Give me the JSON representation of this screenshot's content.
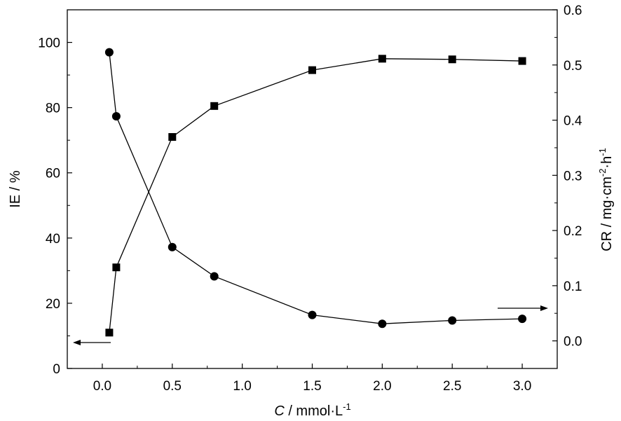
{
  "chart_data": {
    "type": "line",
    "xlabel": {
      "italic": "C",
      "rest": " / mmol·L",
      "sup": "-1"
    },
    "ylabel_left": "IE / %",
    "ylabel_right": {
      "a": "CR / mg·cm",
      "sup1": "-2",
      "b": "·h",
      "sup2": "-1"
    },
    "x_ticks": [
      "0.0",
      "0.5",
      "1.0",
      "1.5",
      "2.0",
      "2.5",
      "3.0"
    ],
    "y_left_ticks": [
      "0",
      "20",
      "40",
      "60",
      "80",
      "100"
    ],
    "y_right_ticks": [
      "0.0",
      "0.1",
      "0.2",
      "0.3",
      "0.4",
      "0.5",
      "0.6"
    ],
    "xlim": [
      -0.25,
      3.25
    ],
    "ylim_left": [
      0,
      110
    ],
    "ylim_right": [
      -0.05,
      0.6
    ],
    "series": [
      {
        "axis": "left",
        "marker": "square",
        "x": [
          0.05,
          0.1,
          0.5,
          0.8,
          1.5,
          2.0,
          2.5,
          3.0
        ],
        "y": [
          11.0,
          31.0,
          71.0,
          80.5,
          91.5,
          95.0,
          94.8,
          94.3
        ]
      },
      {
        "axis": "right",
        "marker": "circle",
        "x": [
          0.05,
          0.1,
          0.5,
          0.8,
          1.5,
          2.0,
          2.5,
          3.0
        ],
        "y": [
          0.523,
          0.407,
          0.17,
          0.117,
          0.047,
          0.031,
          0.037,
          0.04
        ]
      }
    ],
    "annotations": [
      {
        "type": "arrow",
        "direction": "left",
        "axis": "left"
      },
      {
        "type": "arrow",
        "direction": "right",
        "axis": "right"
      }
    ],
    "grid": false
  }
}
